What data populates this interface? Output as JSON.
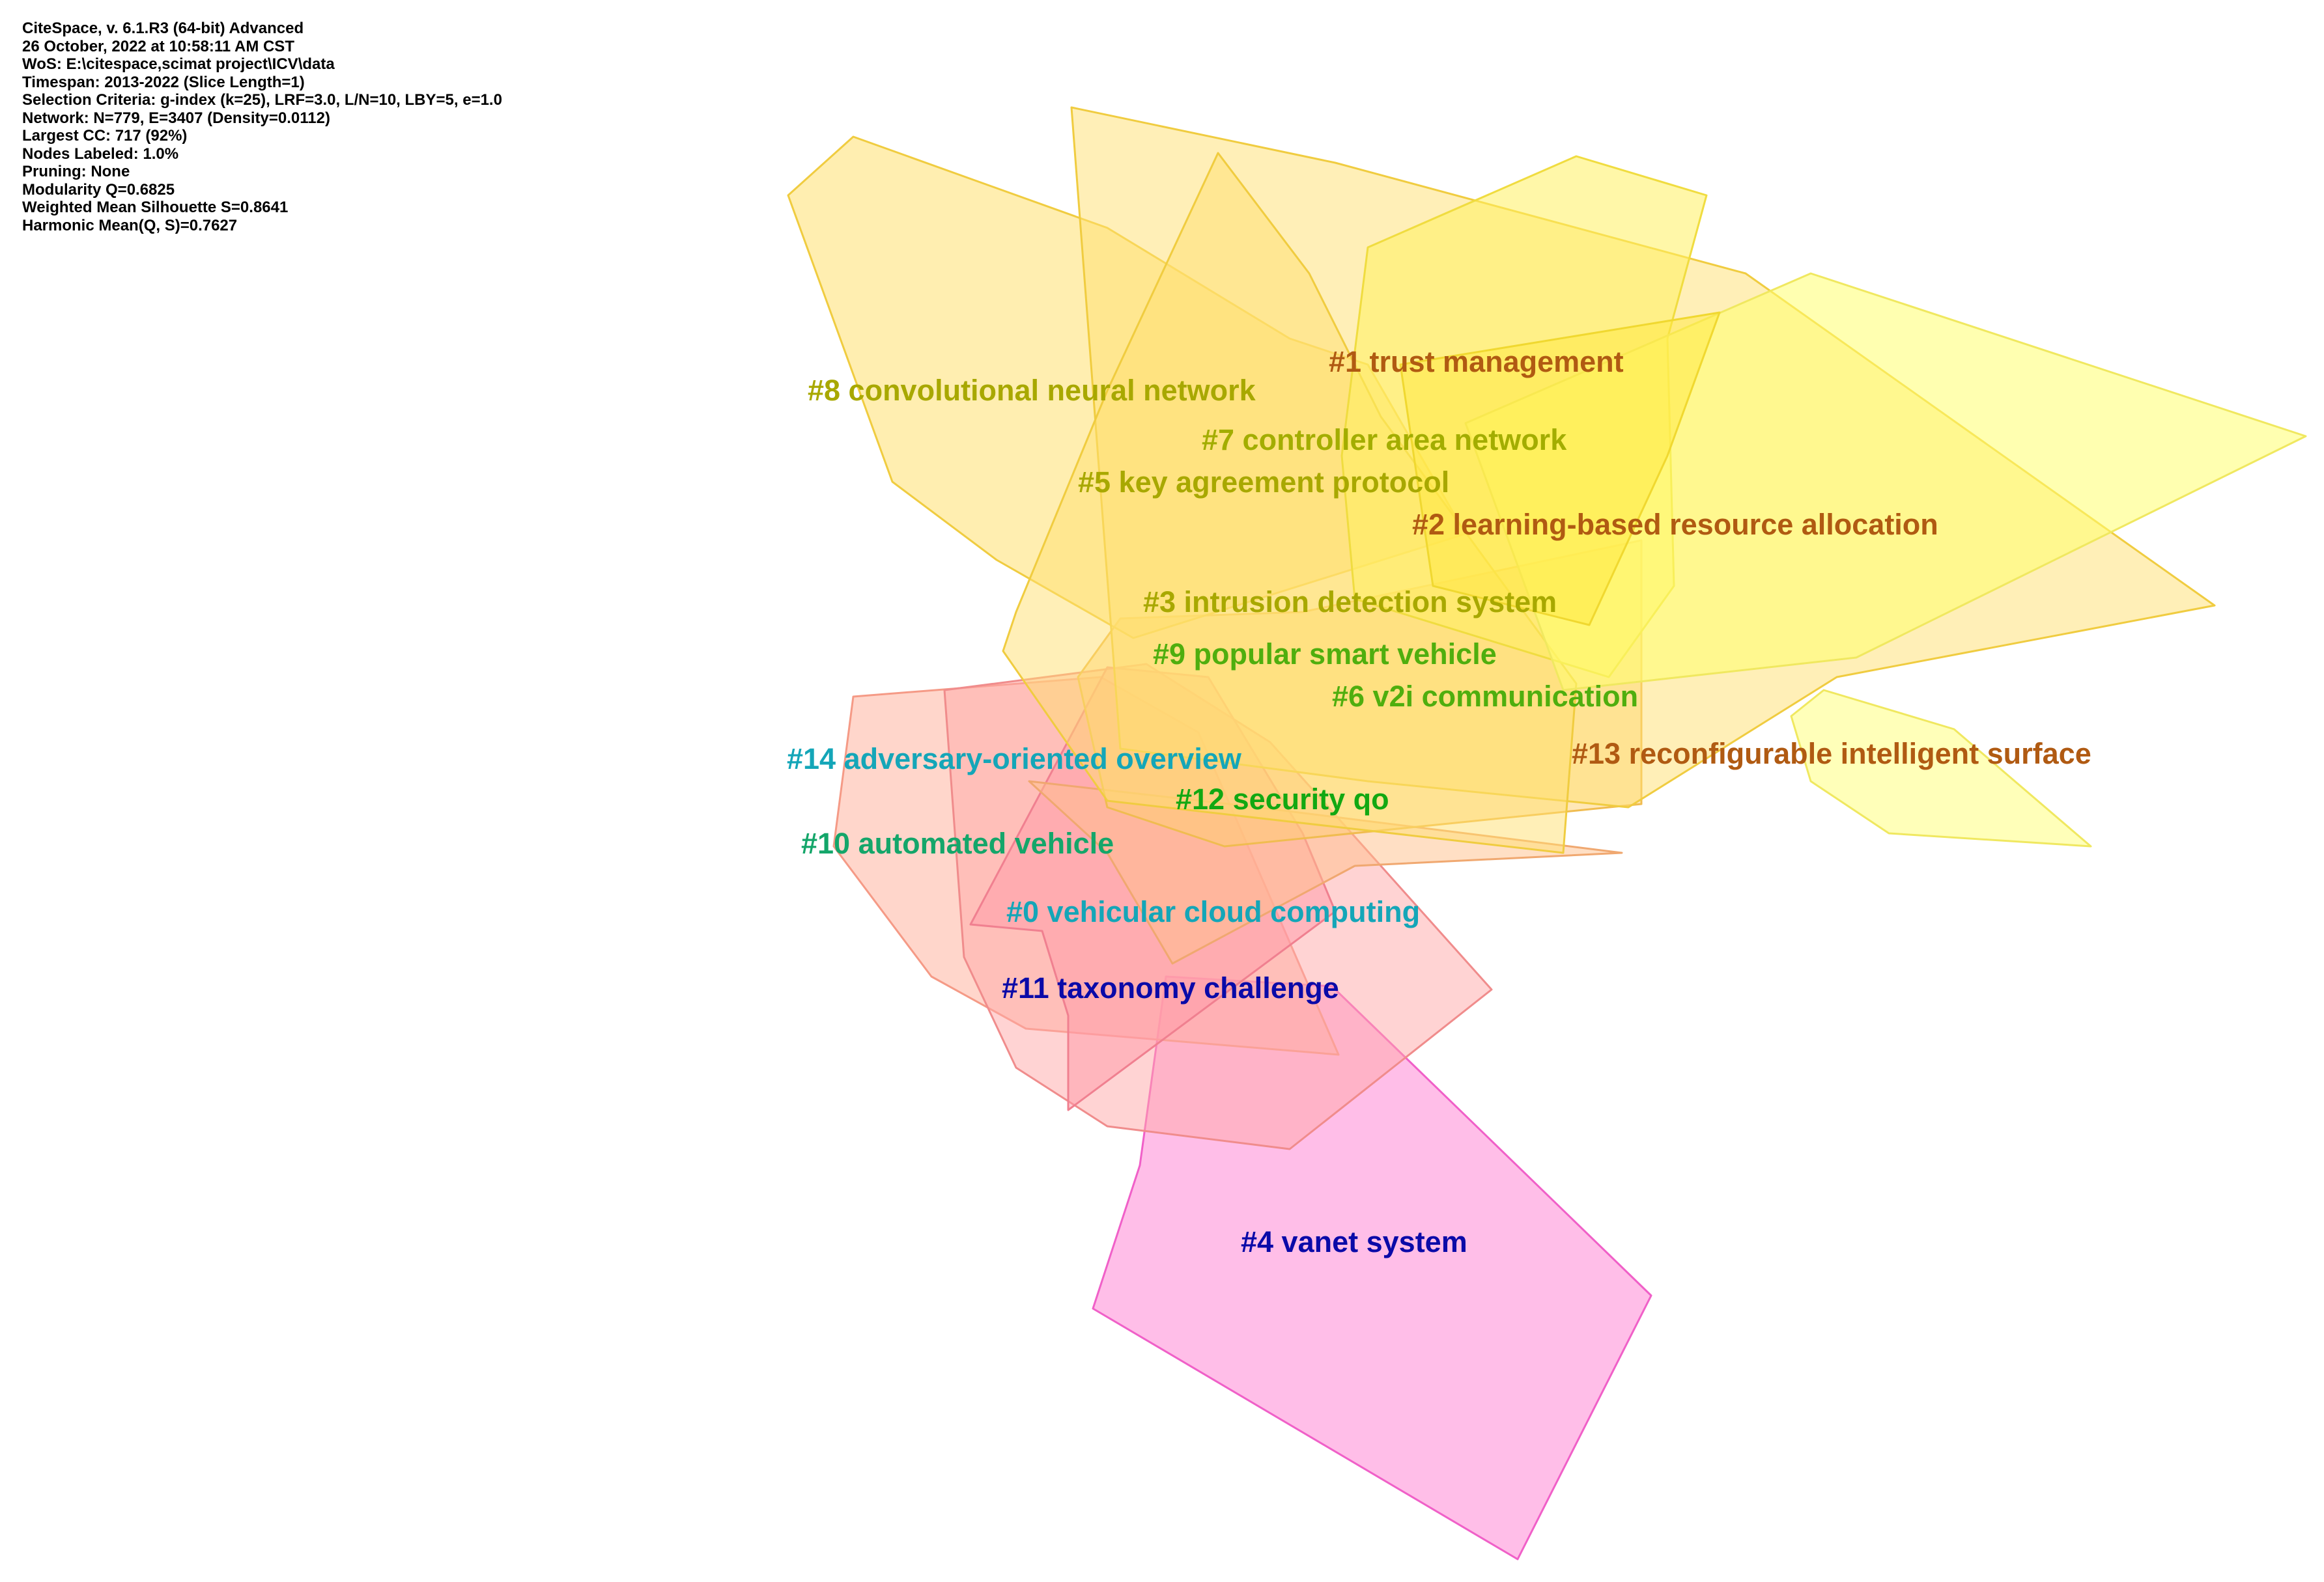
{
  "info_lines": [
    "CiteSpace, v. 6.1.R3 (64-bit) Advanced",
    "26 October, 2022 at 10:58:11 AM CST",
    "WoS: E:\\citespace,scimat project\\ICV\\data",
    "Timespan: 2013-2022 (Slice Length=1)",
    "Selection Criteria: g-index (k=25), LRF=3.0, L/N=10, LBY=5, e=1.0",
    "Network: N=779, E=3407 (Density=0.0112)",
    "Largest CC: 717 (92%)",
    "Nodes Labeled: 1.0%",
    "Pruning: None",
    "Modularity Q=0.6825",
    "Weighted Mean Silhouette S=0.8641",
    "Harmonic Mean(Q, S)=0.7627"
  ],
  "clusters": [
    {
      "id": "c8",
      "label": "#8 convolutional neural network",
      "color": "#a8a800"
    },
    {
      "id": "c1",
      "label": "#1 trust management",
      "color": "#b05a12"
    },
    {
      "id": "c7",
      "label": "#7 controller area network",
      "color": "#a3ad00"
    },
    {
      "id": "c5",
      "label": "#5 key agreement protocol",
      "color": "#a8a800"
    },
    {
      "id": "c2",
      "label": "#2 learning-based resource allocation",
      "color": "#b05a12"
    },
    {
      "id": "c3",
      "label": "#3 intrusion detection system",
      "color": "#a8a800"
    },
    {
      "id": "c9",
      "label": "#9 popular smart vehicle",
      "color": "#4fae0e"
    },
    {
      "id": "c6",
      "label": "#6 v2i communication",
      "color": "#4fae0e"
    },
    {
      "id": "c13",
      "label": "#13 reconfigurable intelligent surface",
      "color": "#b05a12"
    },
    {
      "id": "c14",
      "label": "#14 adversary-oriented overview",
      "color": "#14a6b8"
    },
    {
      "id": "c12",
      "label": "#12 security qo",
      "color": "#12a812"
    },
    {
      "id": "c10",
      "label": "#10 automated vehicle",
      "color": "#14a66a"
    },
    {
      "id": "c0",
      "label": "#0 vehicular cloud computing",
      "color": "#14a6b8"
    },
    {
      "id": "c11",
      "label": "#11 taxonomy challenge",
      "color": "#0a0aa8"
    },
    {
      "id": "c4",
      "label": "#4 vanet system",
      "color": "#0a0aa8"
    }
  ]
}
